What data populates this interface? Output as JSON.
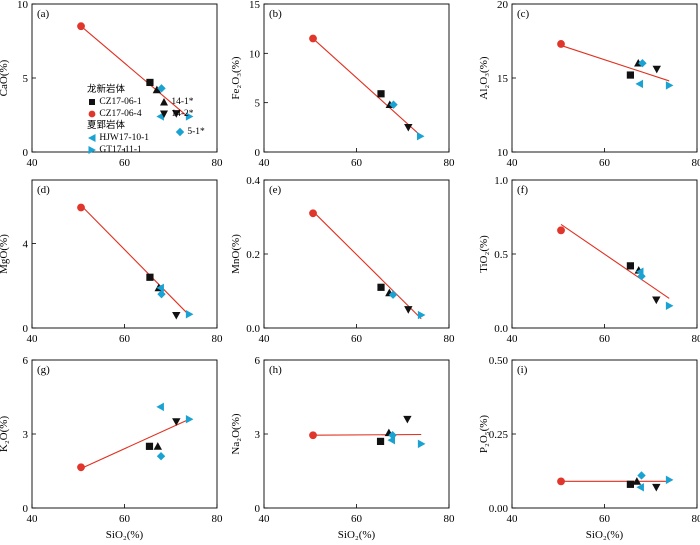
{
  "colors": {
    "black": "#111111",
    "red": "#e0362c",
    "blue": "#1aa2d2",
    "line": "#e03020"
  },
  "legend": {
    "groups": [
      {
        "heading": "龙新岩体",
        "items": [
          {
            "key": "CZ17-06-1",
            "label": "CZ17-06-1",
            "marker": "square",
            "color": "#111111"
          },
          {
            "key": "CZ17-06-4",
            "label": "CZ17-06-4",
            "marker": "circle",
            "color": "#e0362c"
          },
          {
            "key": "14-1*",
            "label": "14-1*",
            "marker": "triangle-up",
            "color": "#111111"
          },
          {
            "key": "14-2*",
            "label": "14-2*",
            "marker": "triangle-down",
            "color": "#111111"
          }
        ]
      },
      {
        "heading": "夏郢岩体",
        "items": [
          {
            "key": "HJW17-10-1",
            "label": "HJW17-10-1",
            "marker": "triangle-left",
            "color": "#1aa2d2"
          },
          {
            "key": "GT17-11-1",
            "label": "GT17-11-1",
            "marker": "triangle-right",
            "color": "#1aa2d2"
          },
          {
            "key": "5-1*",
            "label": "5-1*",
            "marker": "diamond",
            "color": "#1aa2d2"
          }
        ]
      }
    ]
  },
  "chart_data": [
    {
      "type": "scatter",
      "panel_label": "(a)",
      "ylabel": "CaO(%)",
      "xlabel": "",
      "xlim": [
        40,
        80
      ],
      "ylim": [
        0,
        10
      ],
      "xticks": [
        40,
        60,
        80
      ],
      "yticks": [
        0,
        5,
        10
      ],
      "ytick_labels": [
        "0",
        "5",
        "10"
      ],
      "fit_line": {
        "x": [
          50.6,
          74
        ],
        "y": [
          8.5,
          2.3
        ]
      },
      "points": [
        {
          "series": "CZ17-06-4",
          "x": 50.6,
          "y": 8.5
        },
        {
          "series": "CZ17-06-1",
          "x": 65.5,
          "y": 4.7
        },
        {
          "series": "14-1*",
          "x": 67,
          "y": 4.2
        },
        {
          "series": "5-1*",
          "x": 68,
          "y": 4.3
        },
        {
          "series": "HJW17-10-1",
          "x": 67.8,
          "y": 2.4
        },
        {
          "series": "14-2*",
          "x": 71.2,
          "y": 2.6
        },
        {
          "series": "GT17-11-1",
          "x": 74,
          "y": 2.4
        }
      ]
    },
    {
      "type": "scatter",
      "panel_label": "(b)",
      "ylabel": "Fe₂O₃(%)",
      "xlabel": "",
      "xlim": [
        40,
        80
      ],
      "ylim": [
        0,
        15
      ],
      "xticks": [
        40,
        60,
        80
      ],
      "yticks": [
        0,
        5,
        10,
        15
      ],
      "ytick_labels": [
        "0",
        "5",
        "10",
        "15"
      ],
      "fit_line": {
        "x": [
          50.6,
          74
        ],
        "y": [
          11.5,
          1.6
        ]
      },
      "points": [
        {
          "series": "CZ17-06-4",
          "x": 50.6,
          "y": 11.5
        },
        {
          "series": "CZ17-06-1",
          "x": 65.3,
          "y": 5.9
        },
        {
          "series": "14-1*",
          "x": 67.2,
          "y": 4.8
        },
        {
          "series": "5-1*",
          "x": 68,
          "y": 4.8
        },
        {
          "series": "14-2*",
          "x": 71.2,
          "y": 2.5
        },
        {
          "series": "GT17-11-1",
          "x": 73.8,
          "y": 1.6
        }
      ]
    },
    {
      "type": "scatter",
      "panel_label": "(c)",
      "ylabel": "Al₂O₃(%)",
      "xlabel": "",
      "xlim": [
        40,
        80
      ],
      "ylim": [
        10,
        20
      ],
      "xticks": [
        40,
        60,
        80
      ],
      "yticks": [
        10,
        15,
        20
      ],
      "ytick_labels": [
        "10",
        "15",
        "20"
      ],
      "fit_line": {
        "x": [
          50.6,
          74
        ],
        "y": [
          17.2,
          14.8
        ]
      },
      "points": [
        {
          "series": "CZ17-06-4",
          "x": 50.6,
          "y": 17.3
        },
        {
          "series": "CZ17-06-1",
          "x": 65.6,
          "y": 15.2
        },
        {
          "series": "14-1*",
          "x": 67.3,
          "y": 16
        },
        {
          "series": "5-1*",
          "x": 68.2,
          "y": 16
        },
        {
          "series": "14-2*",
          "x": 71.3,
          "y": 15.6
        },
        {
          "series": "HJW17-10-1",
          "x": 67.6,
          "y": 14.6
        },
        {
          "series": "GT17-11-1",
          "x": 74,
          "y": 14.5
        }
      ]
    },
    {
      "type": "scatter",
      "panel_label": "(d)",
      "ylabel": "MgO(%)",
      "xlabel": "",
      "xlim": [
        40,
        80
      ],
      "ylim": [
        0,
        7
      ],
      "xticks": [
        40,
        60,
        80
      ],
      "yticks": [
        0,
        4
      ],
      "ytick_labels": [
        "0",
        "4"
      ],
      "fit_line": {
        "x": [
          50.6,
          74
        ],
        "y": [
          5.8,
          0.6
        ]
      },
      "points": [
        {
          "series": "CZ17-06-4",
          "x": 50.6,
          "y": 5.7
        },
        {
          "series": "CZ17-06-1",
          "x": 65.5,
          "y": 2.4
        },
        {
          "series": "14-1*",
          "x": 67.4,
          "y": 1.9
        },
        {
          "series": "HJW17-10-1",
          "x": 67.8,
          "y": 1.9
        },
        {
          "series": "5-1*",
          "x": 68,
          "y": 1.6
        },
        {
          "series": "14-2*",
          "x": 71.2,
          "y": 0.6
        },
        {
          "series": "GT17-11-1",
          "x": 74,
          "y": 0.65
        }
      ]
    },
    {
      "type": "scatter",
      "panel_label": "(e)",
      "ylabel": "MnO(%)",
      "xlabel": "",
      "xlim": [
        40,
        80
      ],
      "ylim": [
        0,
        0.4
      ],
      "xticks": [
        40,
        60,
        80
      ],
      "yticks": [
        0,
        0.2,
        0.4
      ],
      "ytick_labels": [
        "0.0",
        "0.2",
        "0.4"
      ],
      "fit_line": {
        "x": [
          50.6,
          74
        ],
        "y": [
          0.315,
          0.025
        ]
      },
      "points": [
        {
          "series": "CZ17-06-4",
          "x": 50.6,
          "y": 0.31
        },
        {
          "series": "CZ17-06-1",
          "x": 65.3,
          "y": 0.11
        },
        {
          "series": "14-1*",
          "x": 67.1,
          "y": 0.095
        },
        {
          "series": "5-1*",
          "x": 67.9,
          "y": 0.09
        },
        {
          "series": "14-2*",
          "x": 71.2,
          "y": 0.05
        },
        {
          "series": "GT17-11-1",
          "x": 74,
          "y": 0.035
        }
      ]
    },
    {
      "type": "scatter",
      "panel_label": "(f)",
      "ylabel": "TiO₂(%)",
      "xlabel": "",
      "xlim": [
        40,
        80
      ],
      "ylim": [
        0,
        1
      ],
      "xticks": [
        40,
        60,
        80
      ],
      "yticks": [
        0,
        0.5,
        1
      ],
      "ytick_labels": [
        "0.0",
        "0.5",
        "1.0"
      ],
      "fit_line": {
        "x": [
          50.6,
          74
        ],
        "y": [
          0.7,
          0.2
        ]
      },
      "points": [
        {
          "series": "CZ17-06-4",
          "x": 50.6,
          "y": 0.66
        },
        {
          "series": "CZ17-06-1",
          "x": 65.6,
          "y": 0.42
        },
        {
          "series": "14-1*",
          "x": 67.4,
          "y": 0.39
        },
        {
          "series": "HJW17-10-1",
          "x": 67.7,
          "y": 0.38
        },
        {
          "series": "5-1*",
          "x": 68,
          "y": 0.35
        },
        {
          "series": "14-2*",
          "x": 71.2,
          "y": 0.19
        },
        {
          "series": "GT17-11-1",
          "x": 74,
          "y": 0.15
        }
      ]
    },
    {
      "type": "scatter",
      "panel_label": "(g)",
      "ylabel": "K₂O(%)",
      "xlabel": "SiO₂(%)",
      "xlim": [
        40,
        80
      ],
      "ylim": [
        0,
        6
      ],
      "xticks": [
        40,
        60,
        80
      ],
      "yticks": [
        0,
        3,
        6
      ],
      "ytick_labels": [
        "0",
        "3",
        "6"
      ],
      "fit_line": {
        "x": [
          50.6,
          74
        ],
        "y": [
          1.6,
          3.6
        ]
      },
      "points": [
        {
          "series": "CZ17-06-4",
          "x": 50.6,
          "y": 1.65
        },
        {
          "series": "CZ17-06-1",
          "x": 65.4,
          "y": 2.5
        },
        {
          "series": "14-1*",
          "x": 67.2,
          "y": 2.5
        },
        {
          "series": "5-1*",
          "x": 67.9,
          "y": 2.1
        },
        {
          "series": "HJW17-10-1",
          "x": 67.8,
          "y": 4.1
        },
        {
          "series": "14-2*",
          "x": 71.2,
          "y": 3.5
        },
        {
          "series": "GT17-11-1",
          "x": 74,
          "y": 3.6
        }
      ]
    },
    {
      "type": "scatter",
      "panel_label": "(h)",
      "ylabel": "Na₂O(%)",
      "xlabel": "SiO₂(%)",
      "xlim": [
        40,
        80
      ],
      "ylim": [
        0,
        6
      ],
      "xticks": [
        40,
        60,
        80
      ],
      "yticks": [
        0,
        3,
        6
      ],
      "ytick_labels": [
        "0",
        "3",
        "6"
      ],
      "fit_line": {
        "x": [
          50.6,
          74
        ],
        "y": [
          2.95,
          2.98
        ]
      },
      "points": [
        {
          "series": "CZ17-06-4",
          "x": 50.6,
          "y": 2.95
        },
        {
          "series": "CZ17-06-1",
          "x": 65.2,
          "y": 2.7
        },
        {
          "series": "14-1*",
          "x": 67,
          "y": 3.05
        },
        {
          "series": "5-1*",
          "x": 67.8,
          "y": 2.95
        },
        {
          "series": "HJW17-10-1",
          "x": 67.6,
          "y": 2.75
        },
        {
          "series": "14-2*",
          "x": 71,
          "y": 3.6
        },
        {
          "series": "GT17-11-1",
          "x": 74,
          "y": 2.6
        }
      ]
    },
    {
      "type": "scatter",
      "panel_label": "(i)",
      "ylabel": "P₂O₅(%)",
      "xlabel": "SiO₂(%)",
      "xlim": [
        40,
        80
      ],
      "ylim": [
        0,
        0.5
      ],
      "xticks": [
        40,
        60,
        80
      ],
      "yticks": [
        0,
        0.25,
        0.5
      ],
      "ytick_labels": [
        "0.00",
        "0.25",
        "0.50"
      ],
      "fit_line": {
        "x": [
          50.6,
          74
        ],
        "y": [
          0.09,
          0.09
        ]
      },
      "points": [
        {
          "series": "CZ17-06-4",
          "x": 50.6,
          "y": 0.09
        },
        {
          "series": "CZ17-06-1",
          "x": 65.6,
          "y": 0.08
        },
        {
          "series": "14-1*",
          "x": 67,
          "y": 0.09
        },
        {
          "series": "5-1*",
          "x": 68,
          "y": 0.11
        },
        {
          "series": "HJW17-10-1",
          "x": 67.8,
          "y": 0.07
        },
        {
          "series": "14-2*",
          "x": 71.2,
          "y": 0.07
        },
        {
          "series": "GT17-11-1",
          "x": 74,
          "y": 0.095
        }
      ]
    }
  ]
}
